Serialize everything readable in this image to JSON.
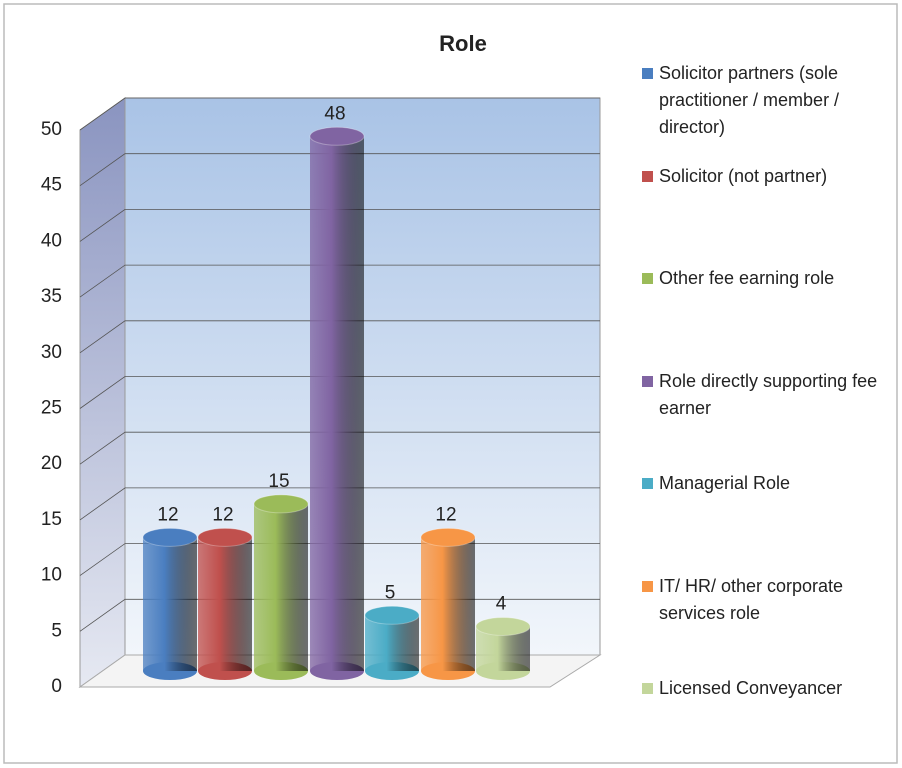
{
  "chart_data": {
    "type": "bar3d",
    "title": "Role",
    "categories": [
      "Solicitor partners (sole practitioner / member / director)",
      "Solicitor (not partner)",
      "Other fee earning role",
      "Role directly supporting fee earner",
      "Managerial Role",
      "IT/ HR/ other corporate services role",
      "Licensed Conveyancer"
    ],
    "values": [
      12,
      12,
      15,
      48,
      5,
      12,
      4
    ],
    "colors": [
      "#4a7ec0",
      "#c0504d",
      "#9bbb59",
      "#8064a2",
      "#4bacc6",
      "#f79646",
      "#c3d69b"
    ],
    "ylim": [
      0,
      50
    ],
    "yticks": [
      0,
      5,
      10,
      15,
      20,
      25,
      30,
      35,
      40,
      45,
      50
    ],
    "grid": true,
    "legend": "right"
  }
}
